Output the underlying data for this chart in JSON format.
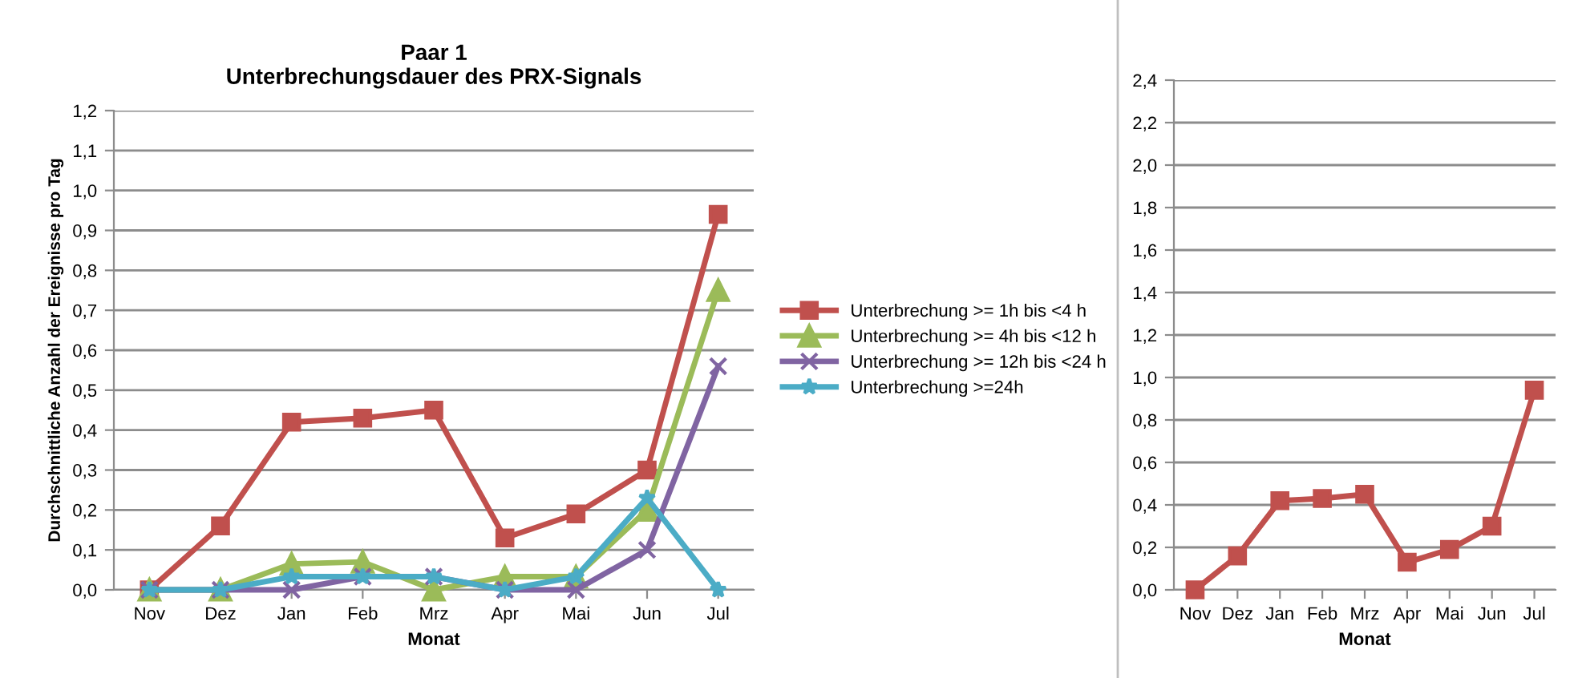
{
  "chart_data": [
    {
      "type": "line",
      "title": "Paar 1\nUnterbrechungsdauer des PRX-Signals",
      "xlabel": "Monat",
      "ylabel": "Durchschnittliche Anzahl der Ereignisse pro Tag",
      "categories": [
        "Nov",
        "Dez",
        "Jan",
        "Feb",
        "Mrz",
        "Apr",
        "Mai",
        "Jun",
        "Jul"
      ],
      "series": [
        {
          "name": "Unterbrechung >= 1h bis <4 h",
          "color": "#c0504d",
          "marker": "square",
          "values": [
            0,
            0.16,
            0.42,
            0.43,
            0.45,
            0.13,
            0.19,
            0.3,
            0.94
          ]
        },
        {
          "name": "Unterbrechung >= 4h bis <12 h",
          "color": "#9bbb59",
          "marker": "triangle",
          "values": [
            0,
            0,
            0.065,
            0.07,
            0,
            0.033,
            0.033,
            0.2,
            0.75
          ]
        },
        {
          "name": "Unterbrechung >= 12h bis <24 h",
          "color": "#8064a2",
          "marker": "cross",
          "values": [
            0,
            0,
            0,
            0.033,
            0.033,
            0,
            0,
            0.1,
            0.56
          ]
        },
        {
          "name": "Unterbrechung >=24h",
          "color": "#4bacc6",
          "marker": "star",
          "values": [
            0,
            0,
            0.033,
            0.033,
            0.033,
            0,
            0.033,
            0.23,
            0
          ]
        }
      ],
      "ylim": [
        0,
        1.2
      ],
      "yticks": [
        {
          "value": 0,
          "label": "0,0"
        },
        {
          "value": 0.1,
          "label": "0,1"
        },
        {
          "value": 0.2,
          "label": "0,2"
        },
        {
          "value": 0.3,
          "label": "0,3"
        },
        {
          "value": 0.4,
          "label": "0,4"
        },
        {
          "value": 0.5,
          "label": "0,5"
        },
        {
          "value": 0.6,
          "label": "0,6"
        },
        {
          "value": 0.7,
          "label": "0,7"
        },
        {
          "value": 0.8,
          "label": "0,8"
        },
        {
          "value": 0.9,
          "label": "0,9"
        },
        {
          "value": 1.0,
          "label": "1,0"
        },
        {
          "value": 1.1,
          "label": "1,1"
        },
        {
          "value": 1.2,
          "label": "1,2"
        }
      ],
      "grid": "y",
      "legend": "right",
      "line_style": "solid"
    },
    {
      "type": "line",
      "xlabel": "Monat",
      "categories": [
        "Nov",
        "Dez",
        "Jan",
        "Feb",
        "Mrz",
        "Apr",
        "Mai",
        "Jun",
        "Jul"
      ],
      "series": [
        {
          "color": "#c0504d",
          "marker": "square",
          "values": [
            0,
            0.16,
            0.42,
            0.43,
            0.45,
            0.13,
            0.19,
            0.3,
            0.94
          ]
        }
      ],
      "ylim": [
        0,
        2.4
      ],
      "yticks": [
        {
          "value": 0,
          "label": "0,0"
        },
        {
          "value": 0.2,
          "label": "0,2"
        },
        {
          "value": 0.4,
          "label": "0,4"
        },
        {
          "value": 0.6,
          "label": "0,6"
        },
        {
          "value": 0.8,
          "label": "0,8"
        },
        {
          "value": 1.0,
          "label": "1,0"
        },
        {
          "value": 1.2,
          "label": "1,2"
        },
        {
          "value": 1.4,
          "label": "1,4"
        },
        {
          "value": 1.6,
          "label": "1,6"
        },
        {
          "value": 1.8,
          "label": "1,8"
        },
        {
          "value": 2.0,
          "label": "2,0"
        },
        {
          "value": 2.2,
          "label": "2,2"
        },
        {
          "value": 2.4,
          "label": "2,4"
        }
      ],
      "grid": "y",
      "line_style": "solid"
    }
  ]
}
